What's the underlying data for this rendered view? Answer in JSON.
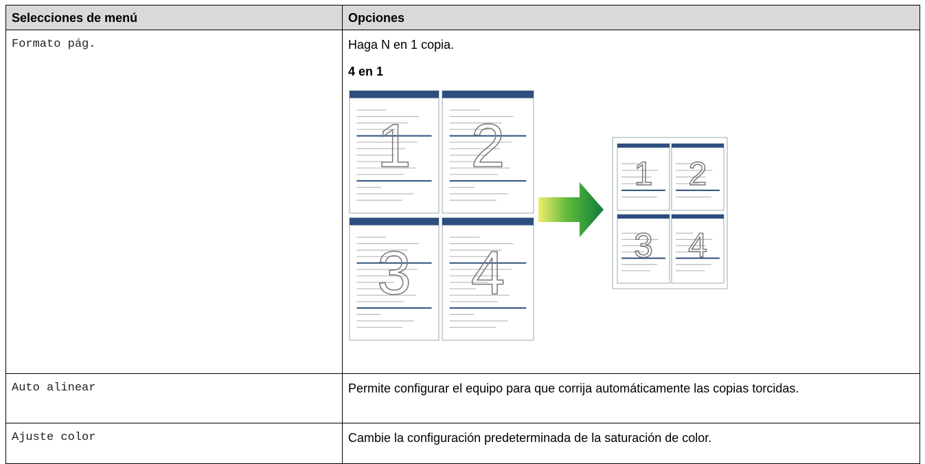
{
  "table": {
    "headers": [
      "Selecciones de menú",
      "Opciones"
    ],
    "rows": [
      {
        "menu": "Formato pág.",
        "description": "Haga N en 1 copia.",
        "subheading": "4 en 1",
        "figure": {
          "page_numbers": [
            "1",
            "2",
            "3",
            "4"
          ]
        }
      },
      {
        "menu": "Auto alinear",
        "description": "Permite configurar el equipo para que corrija automáticamente las copias torcidas."
      },
      {
        "menu": "Ajuste color",
        "description": "Cambie la configuración predeterminada de la saturación de color."
      }
    ]
  }
}
